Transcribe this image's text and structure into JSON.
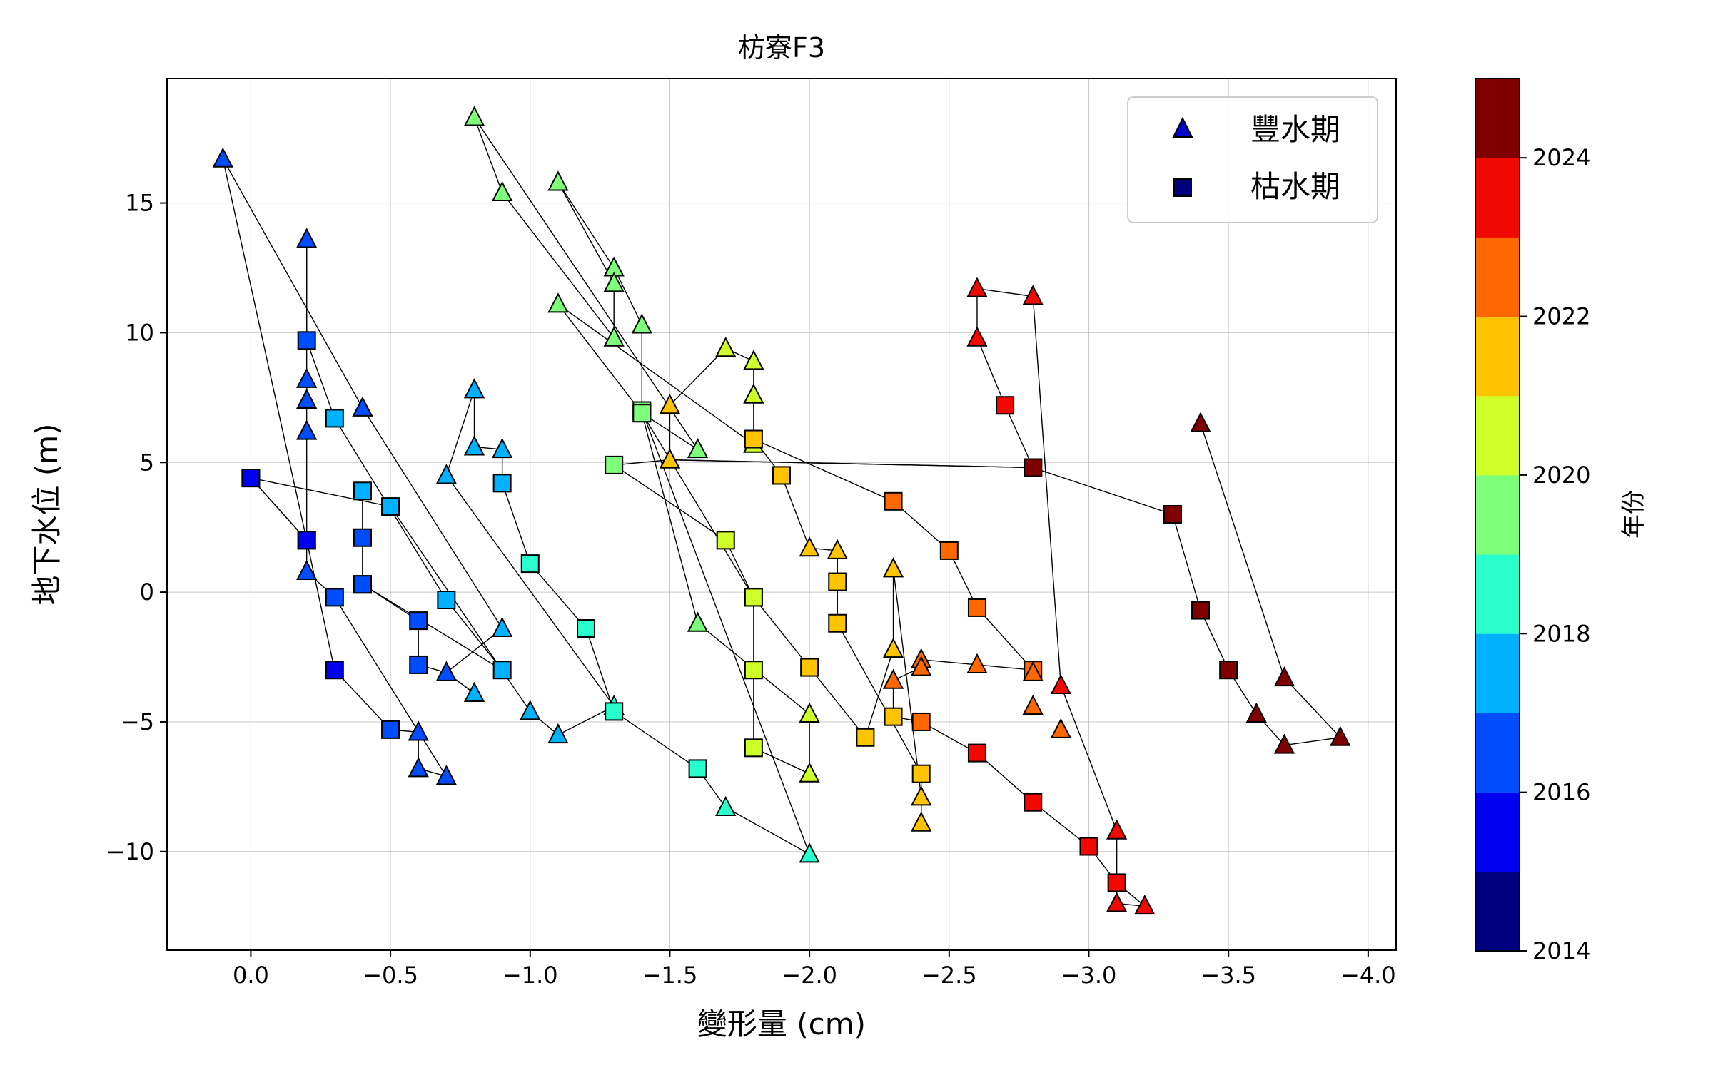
{
  "chart_data": {
    "type": "scatter",
    "title": "枋寮F3",
    "xlabel": "變形量 (cm)",
    "ylabel": "地下水位 (m)",
    "xlim": [
      0.3,
      -4.1
    ],
    "ylim": [
      -13.8,
      19.8
    ],
    "x_ticks": [
      0.0,
      -0.5,
      -1.0,
      -1.5,
      -2.0,
      -2.5,
      -3.0,
      -3.5,
      -4.0
    ],
    "x_tick_labels": [
      "0.0",
      "−0.5",
      "−1.0",
      "−1.5",
      "−2.0",
      "−2.5",
      "−3.0",
      "−3.5",
      "−4.0"
    ],
    "y_ticks": [
      15,
      10,
      5,
      0,
      -5,
      -10
    ],
    "y_tick_labels": [
      "15",
      "10",
      "5",
      "0",
      "−5",
      "−10"
    ],
    "grid": true,
    "legend": {
      "placement": "top-right",
      "entries": [
        {
          "label": "豐水期",
          "marker": "triangle",
          "color": "#0000cc"
        },
        {
          "label": "枯水期",
          "marker": "square",
          "color": "#00007f"
        }
      ]
    },
    "colorbar": {
      "label": "年份",
      "min": 2014,
      "max": 2025,
      "ticks": [
        2014,
        2016,
        2018,
        2020,
        2022,
        2024
      ],
      "tick_labels": [
        "2014",
        "2016",
        "2018",
        "2020",
        "2022",
        "2024"
      ],
      "colors": [
        "#00007f",
        "#0000f1",
        "#004dff",
        "#00b1ff",
        "#29ffce",
        "#7dff7a",
        "#ceff29",
        "#ffc400",
        "#ff6800",
        "#f10800",
        "#7f0000"
      ]
    },
    "path": [
      {
        "x": 0.0,
        "y": 4.4,
        "m": "s",
        "yr": 2015.5
      },
      {
        "x": -0.2,
        "y": 2.0,
        "m": "s",
        "yr": 2015.7
      },
      {
        "x": -0.3,
        "y": -3.0,
        "m": "s",
        "yr": 2015.9
      },
      {
        "x": -0.5,
        "y": -5.3,
        "m": "s",
        "yr": 2016.0
      },
      {
        "x": -0.6,
        "y": -5.4,
        "m": "t",
        "yr": 2016.3
      },
      {
        "x": -0.6,
        "y": -6.8,
        "m": "t",
        "yr": 2016.4
      },
      {
        "x": -0.7,
        "y": -7.1,
        "m": "t",
        "yr": 2016.5
      },
      {
        "x": -0.3,
        "y": -0.2,
        "m": "s",
        "yr": 2016.0
      },
      {
        "x": -0.2,
        "y": 0.8,
        "m": "t",
        "yr": 2016.3
      },
      {
        "x": -0.2,
        "y": 6.2,
        "m": "t",
        "yr": 2016.4
      },
      {
        "x": -0.2,
        "y": 7.4,
        "m": "t",
        "yr": 2016.5
      },
      {
        "x": -0.2,
        "y": 8.2,
        "m": "t",
        "yr": 2016.6
      },
      {
        "x": -0.2,
        "y": 13.6,
        "m": "t",
        "yr": 2016.8
      },
      {
        "x": -0.2,
        "y": 9.7,
        "m": "s",
        "yr": 2016.9
      },
      {
        "x": -0.3,
        "y": 6.7,
        "m": "s",
        "yr": 2017.2
      },
      {
        "x": -0.7,
        "y": -0.3,
        "m": "s",
        "yr": 2017.3
      },
      {
        "x": -0.9,
        "y": -3.0,
        "m": "s",
        "yr": 2017.4
      },
      {
        "x": -0.4,
        "y": 0.3,
        "m": "s",
        "yr": 2016.8
      },
      {
        "x": -0.4,
        "y": 2.1,
        "m": "s",
        "yr": 2016.9
      },
      {
        "x": -0.4,
        "y": 3.9,
        "m": "s",
        "yr": 2017.0
      },
      {
        "x": -0.4,
        "y": 0.3,
        "m": "s",
        "yr": 2016.8
      },
      {
        "x": -0.6,
        "y": -1.1,
        "m": "s",
        "yr": 2016.8
      },
      {
        "x": -0.6,
        "y": -2.8,
        "m": "s",
        "yr": 2016.8
      },
      {
        "x": -0.7,
        "y": -3.1,
        "m": "t",
        "yr": 2016.9
      },
      {
        "x": -0.8,
        "y": -3.9,
        "m": "t",
        "yr": 2017.0
      },
      {
        "x": -0.7,
        "y": -3.1,
        "m": "t",
        "yr": 2016.9
      },
      {
        "x": -0.9,
        "y": -1.4,
        "m": "t",
        "yr": 2017.1
      },
      {
        "x": -0.4,
        "y": 7.1,
        "m": "t",
        "yr": 2016.6
      },
      {
        "x": 0.1,
        "y": 16.7,
        "m": "t",
        "yr": 2016.5
      },
      {
        "x": -0.2,
        "y": 2.0,
        "m": "s",
        "yr": 2015.7
      },
      {
        "x": 0.0,
        "y": 4.4,
        "m": "s",
        "yr": 2015.5
      },
      {
        "x": -0.5,
        "y": 3.3,
        "m": "s",
        "yr": 2017.5
      },
      {
        "x": -1.0,
        "y": -4.6,
        "m": "t",
        "yr": 2017.8
      },
      {
        "x": -1.1,
        "y": -5.5,
        "m": "t",
        "yr": 2017.9
      },
      {
        "x": -1.3,
        "y": -4.4,
        "m": "t",
        "yr": 2018.1
      },
      {
        "x": -0.7,
        "y": 4.5,
        "m": "t",
        "yr": 2017.6
      },
      {
        "x": -0.8,
        "y": 7.8,
        "m": "t",
        "yr": 2017.8
      },
      {
        "x": -0.8,
        "y": 5.6,
        "m": "t",
        "yr": 2017.9
      },
      {
        "x": -0.9,
        "y": 5.5,
        "m": "t",
        "yr": 2017.9
      },
      {
        "x": -0.9,
        "y": 4.2,
        "m": "s",
        "yr": 2017.8
      },
      {
        "x": -1.0,
        "y": 1.1,
        "m": "s",
        "yr": 2018.2
      },
      {
        "x": -1.2,
        "y": -1.4,
        "m": "s",
        "yr": 2018.5
      },
      {
        "x": -1.3,
        "y": -4.6,
        "m": "s",
        "yr": 2018.7
      },
      {
        "x": -1.6,
        "y": -6.8,
        "m": "s",
        "yr": 2018.5
      },
      {
        "x": -1.7,
        "y": -8.3,
        "m": "t",
        "yr": 2018.9
      },
      {
        "x": -2.0,
        "y": -10.1,
        "m": "t",
        "yr": 2018.8
      },
      {
        "x": -1.4,
        "y": 7.0,
        "m": "s",
        "yr": 2019.3
      },
      {
        "x": -1.4,
        "y": 10.3,
        "m": "t",
        "yr": 2019.6
      },
      {
        "x": -1.3,
        "y": 12.5,
        "m": "t",
        "yr": 2019.6
      },
      {
        "x": -1.1,
        "y": 15.8,
        "m": "t",
        "yr": 2019.8
      },
      {
        "x": -1.3,
        "y": 11.9,
        "m": "t",
        "yr": 2019.6
      },
      {
        "x": -1.3,
        "y": 9.8,
        "m": "t",
        "yr": 2019.5
      },
      {
        "x": -0.9,
        "y": 15.4,
        "m": "t",
        "yr": 2019.3
      },
      {
        "x": -0.8,
        "y": 18.3,
        "m": "t",
        "yr": 2019.4
      },
      {
        "x": -1.6,
        "y": 5.5,
        "m": "t",
        "yr": 2019.7
      },
      {
        "x": -1.4,
        "y": 6.9,
        "m": "s",
        "yr": 2019.5
      },
      {
        "x": -1.1,
        "y": 11.1,
        "m": "t",
        "yr": 2019.0
      },
      {
        "x": -1.8,
        "y": 5.7,
        "m": "t",
        "yr": 2020.5
      },
      {
        "x": -1.8,
        "y": 7.6,
        "m": "t",
        "yr": 2020.6
      },
      {
        "x": -1.8,
        "y": 8.9,
        "m": "t",
        "yr": 2020.7
      },
      {
        "x": -1.7,
        "y": 9.4,
        "m": "t",
        "yr": 2020.9
      },
      {
        "x": -1.5,
        "y": 7.2,
        "m": "t",
        "yr": 2021.2
      },
      {
        "x": -1.5,
        "y": 5.1,
        "m": "t",
        "yr": 2021.3
      },
      {
        "x": -1.3,
        "y": 4.9,
        "m": "s",
        "yr": 2019.5
      },
      {
        "x": -1.7,
        "y": 2.0,
        "m": "s",
        "yr": 2020.7
      },
      {
        "x": -1.8,
        "y": -0.2,
        "m": "s",
        "yr": 2020.6
      },
      {
        "x": -1.8,
        "y": -3.0,
        "m": "s",
        "yr": 2020.2
      },
      {
        "x": -1.8,
        "y": -6.0,
        "m": "s",
        "yr": 2020.2
      },
      {
        "x": -2.0,
        "y": -7.0,
        "m": "t",
        "yr": 2020.1
      },
      {
        "x": -2.0,
        "y": -4.7,
        "m": "t",
        "yr": 2020.1
      },
      {
        "x": -1.6,
        "y": -1.2,
        "m": "t",
        "yr": 2019.8
      },
      {
        "x": -1.4,
        "y": 6.9,
        "m": "s",
        "yr": 2019.5
      },
      {
        "x": -1.8,
        "y": -0.2,
        "m": "s",
        "yr": 2020.6
      },
      {
        "x": -2.0,
        "y": -2.9,
        "m": "s",
        "yr": 2021.0
      },
      {
        "x": -2.2,
        "y": -5.6,
        "m": "s",
        "yr": 2021.1
      },
      {
        "x": -2.3,
        "y": -2.2,
        "m": "t",
        "yr": 2021.1
      },
      {
        "x": -2.3,
        "y": 0.9,
        "m": "t",
        "yr": 2021.4
      },
      {
        "x": -2.4,
        "y": -7.9,
        "m": "t",
        "yr": 2021.6
      },
      {
        "x": -2.4,
        "y": -8.9,
        "m": "t",
        "yr": 2021.7
      },
      {
        "x": -2.4,
        "y": -7.0,
        "m": "s",
        "yr": 2021.8
      },
      {
        "x": -2.1,
        "y": -1.2,
        "m": "s",
        "yr": 2021.7
      },
      {
        "x": -2.1,
        "y": 0.4,
        "m": "s",
        "yr": 2021.7
      },
      {
        "x": -2.1,
        "y": 1.6,
        "m": "t",
        "yr": 2021.1
      },
      {
        "x": -2.0,
        "y": 1.7,
        "m": "t",
        "yr": 2021.1
      },
      {
        "x": -1.9,
        "y": 4.5,
        "m": "s",
        "yr": 2021.0
      },
      {
        "x": -1.8,
        "y": 5.9,
        "m": "s",
        "yr": 2021.8
      },
      {
        "x": -2.3,
        "y": 3.5,
        "m": "s",
        "yr": 2022.8
      },
      {
        "x": -2.5,
        "y": 1.6,
        "m": "s",
        "yr": 2022.7
      },
      {
        "x": -2.6,
        "y": -0.6,
        "m": "s",
        "yr": 2022.6
      },
      {
        "x": -2.8,
        "y": -3.0,
        "m": "s",
        "yr": 2022.6
      },
      {
        "x": -2.6,
        "y": -2.8,
        "m": "t",
        "yr": 2022.8
      },
      {
        "x": -2.4,
        "y": -2.6,
        "m": "t",
        "yr": 2022.8
      },
      {
        "x": -2.4,
        "y": -2.9,
        "m": "t",
        "yr": 2022.7
      },
      {
        "x": -2.3,
        "y": -3.4,
        "m": "t",
        "yr": 2022.7
      },
      {
        "x": -2.3,
        "y": -4.8,
        "m": "s",
        "yr": 2021.8
      },
      {
        "x": -2.4,
        "y": -5.0,
        "m": "s",
        "yr": 2022.6
      },
      {
        "x": -2.6,
        "y": -6.2,
        "m": "s",
        "yr": 2023.6
      },
      {
        "x": -2.8,
        "y": -8.1,
        "m": "s",
        "yr": 2023.6
      },
      {
        "x": -3.0,
        "y": -9.8,
        "m": "s",
        "yr": 2023.7
      },
      {
        "x": -3.1,
        "y": -11.2,
        "m": "s",
        "yr": 2023.8
      },
      {
        "x": -3.2,
        "y": -12.1,
        "m": "t",
        "yr": 2023.9
      },
      {
        "x": -3.1,
        "y": -12.0,
        "m": "t",
        "yr": 2023.9
      },
      {
        "x": -3.1,
        "y": -9.2,
        "m": "t",
        "yr": 2023.8
      },
      {
        "x": -2.9,
        "y": -3.6,
        "m": "t",
        "yr": 2023.6
      },
      {
        "x": -2.8,
        "y": 11.4,
        "m": "t",
        "yr": 2023.8
      },
      {
        "x": -2.6,
        "y": 11.7,
        "m": "t",
        "yr": 2023.7
      },
      {
        "x": -2.6,
        "y": 9.8,
        "m": "t",
        "yr": 2023.6
      },
      {
        "x": -2.7,
        "y": 7.2,
        "m": "s",
        "yr": 2023.6
      },
      {
        "x": -2.8,
        "y": 4.8,
        "m": "s",
        "yr": 2024.6
      },
      {
        "x": -1.5,
        "y": 5.1,
        "m": "t",
        "yr": 2021.3
      },
      {
        "x": -2.8,
        "y": 4.8,
        "m": "s",
        "yr": 2024.6
      },
      {
        "x": -3.3,
        "y": 3.0,
        "m": "s",
        "yr": 2024.7
      },
      {
        "x": -3.4,
        "y": -0.7,
        "m": "s",
        "yr": 2024.7
      },
      {
        "x": -3.5,
        "y": -3.0,
        "m": "s",
        "yr": 2024.7
      },
      {
        "x": -3.6,
        "y": -4.7,
        "m": "t",
        "yr": 2024.8
      },
      {
        "x": -3.7,
        "y": -5.9,
        "m": "t",
        "yr": 2024.8
      },
      {
        "x": -3.9,
        "y": -5.6,
        "m": "t",
        "yr": 2024.8
      },
      {
        "x": -3.7,
        "y": -3.3,
        "m": "t",
        "yr": 2024.8
      },
      {
        "x": -3.4,
        "y": 6.5,
        "m": "t",
        "yr": 2024.8
      }
    ],
    "extra_points": [
      {
        "x": -2.8,
        "y": -3.1,
        "m": "t",
        "yr": 2022.8
      },
      {
        "x": -2.8,
        "y": -4.4,
        "m": "t",
        "yr": 2022.7
      },
      {
        "x": -2.9,
        "y": -5.3,
        "m": "t",
        "yr": 2022.7
      },
      {
        "x": -1.8,
        "y": 8.9,
        "m": "t",
        "yr": 2020.9
      },
      {
        "x": -1.9,
        "y": 4.5,
        "m": "s",
        "yr": 2021.0
      }
    ]
  }
}
